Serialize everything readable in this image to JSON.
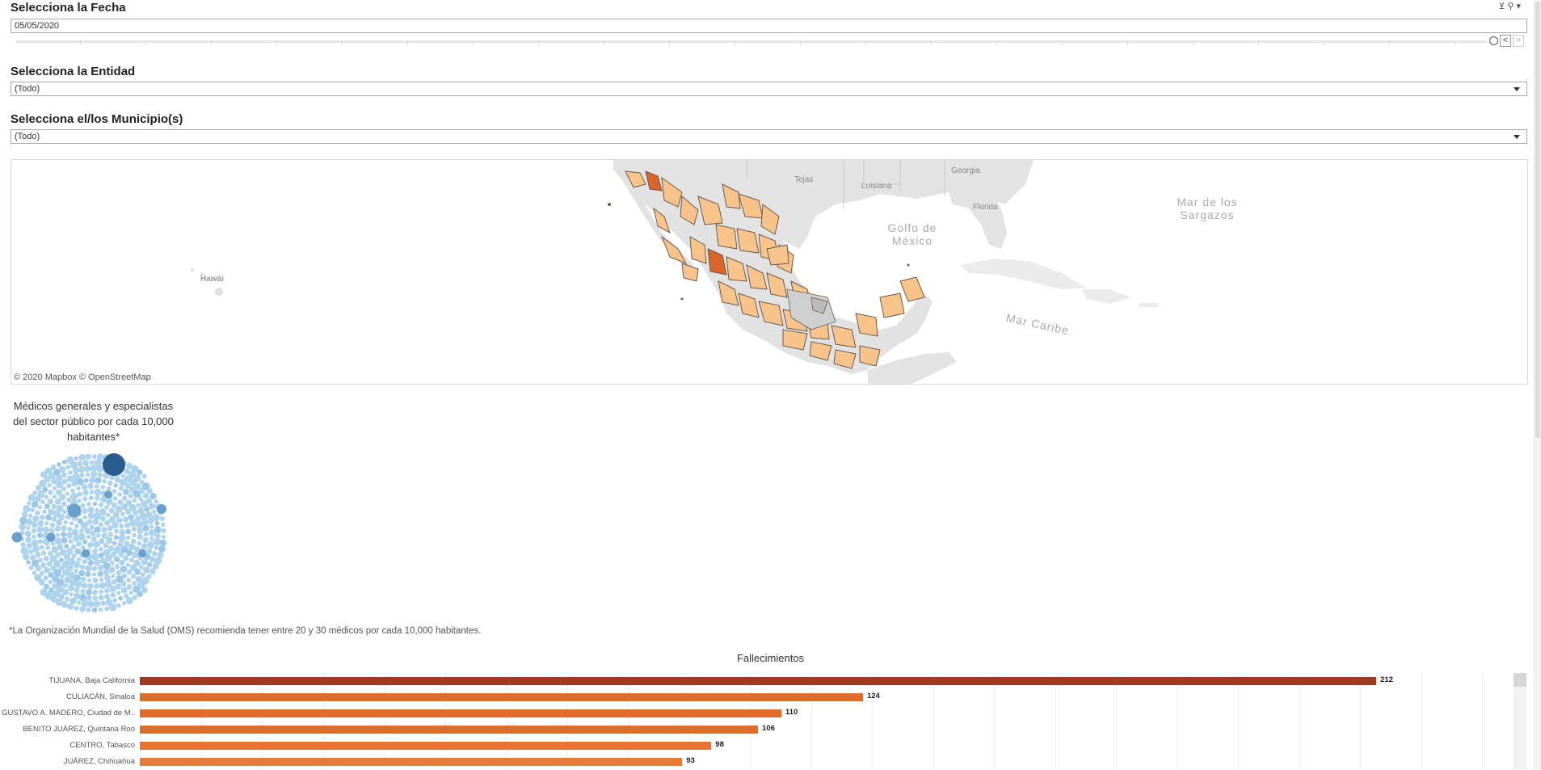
{
  "filters": {
    "date": {
      "title": "Selecciona la Fecha",
      "value": "05/05/2020"
    },
    "entity": {
      "title": "Selecciona la Entidad",
      "value": "(Todo)"
    },
    "municipality": {
      "title": "Selecciona el/los Municipio(s)",
      "value": "(Todo)"
    },
    "nav": {
      "prev": "<",
      "next": ">"
    },
    "icons": [
      "filter-clear-icon",
      "search-icon",
      "menu-caret-icon"
    ]
  },
  "map": {
    "labels": {
      "tejas": "Tejas",
      "luisiana": "Luisiana",
      "georgia": "Georgia",
      "florida": "Florida",
      "golfo": "Golfo de\nMéxico",
      "sargazos": "Mar de los\nSargazos",
      "hawai": "Hawái",
      "caribe": "Mar Caribe"
    },
    "credit": "© 2020 Mapbox  © OpenStreetMap",
    "colors": {
      "land": "#e2e2e2",
      "water": "#ffffff",
      "municipality": "#f9c48b",
      "border": "#6b5a4a",
      "hot": "#d9652b"
    }
  },
  "bubbles": {
    "title": "Médicos generales y especialistas del sector público por cada 10,000 habitantes*",
    "colors": {
      "light": "#aed3ec",
      "mid": "#6b9fcb",
      "dark": "#2a5c8f"
    }
  },
  "footnote": "*La Organización Mundial de la Salud (OMS) recomienda tener entre 20 y 30 médicos por cada 10,000 habitantes.",
  "chart_data": {
    "type": "bar",
    "title": "Fallecimientos",
    "categories": [
      "TIJUANA, Baja California",
      "CULIACÁN, Sinaloa",
      "GUSTAVO A. MADERO, Ciudad de M..",
      "BENITO JUÁREZ, Quintana Roo",
      "CENTRO, Tabasco",
      "JUÁREZ, Chihuahua"
    ],
    "values": [
      212,
      124,
      110,
      106,
      98,
      93
    ],
    "colors": [
      "#a03a1e",
      "#e26c27",
      "#e26c27",
      "#e26c27",
      "#e97330",
      "#ec7a33"
    ],
    "xlim": [
      0,
      230
    ],
    "xlabel": "",
    "ylabel": ""
  }
}
